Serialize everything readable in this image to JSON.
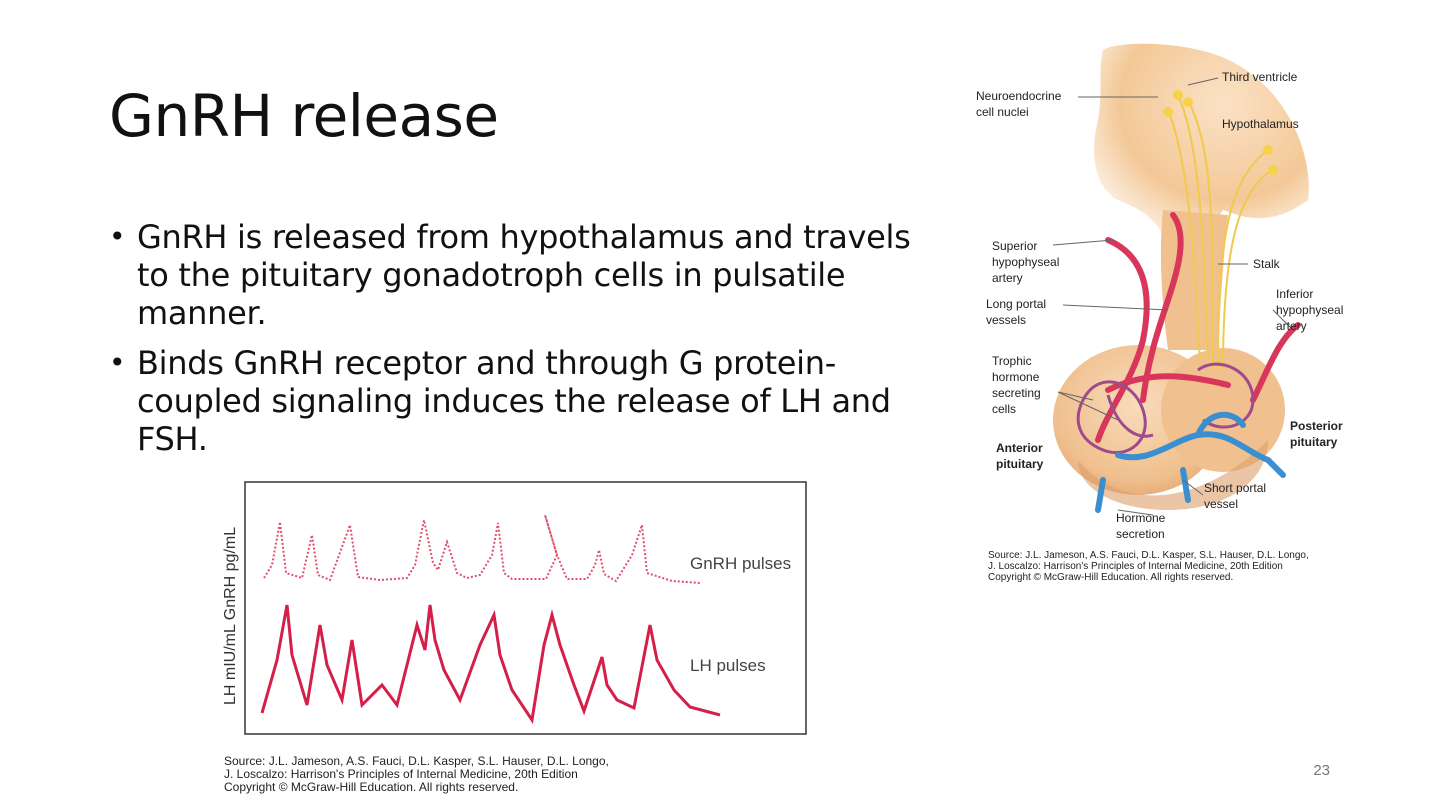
{
  "slide": {
    "title": "GnRH release",
    "bullets": [
      "GnRH is released from hypothalamus and travels to the pituitary gonadotroph cells in pulsatile manner.",
      "Binds GnRH receptor and through G protein-coupled signaling induces the release of LH and FSH."
    ],
    "page_number": "23"
  },
  "pulse_figure": {
    "y_label": "LH mIU/mL GnRH pg/mL",
    "gnrh_label": "GnRH pulses",
    "lh_label": "LH pulses",
    "source": [
      "Source: J.L. Jameson, A.S. Fauci, D.L. Kasper, S.L. Hauser, D.L. Longo,",
      "J. Loscalzo: Harrison's Principles of Internal Medicine, 20th Edition",
      "Copyright © McGraw-Hill Education. All rights reserved."
    ],
    "colors": {
      "gnrh": "#e0506c",
      "lh": "#d41f48",
      "frame": "#333333"
    }
  },
  "anatomy_figure": {
    "labels": {
      "third_ventricle": "Third ventricle",
      "neuroendocrine": "Neuroendocrine\ncell nuclei",
      "hypothalamus": "Hypothalamus",
      "superior_artery": "Superior\nhypophyseal\nartery",
      "stalk": "Stalk",
      "long_portal": "Long portal\nvessels",
      "inferior_artery": "Inferior\nhypophyseal\nartery",
      "trophic": "Trophic\nhormone\nsecreting\ncells",
      "posterior": "Posterior\npituitary",
      "anterior": "Anterior\npituitary",
      "short_portal": "Short portal\nvessel",
      "hormone_secretion": "Hormone\nsecretion"
    },
    "source": [
      "Source: J.L. Jameson, A.S. Fauci, D.L. Kasper, S.L. Hauser, D.L. Longo,",
      "J. Loscalzo: Harrison's Principles of Internal Medicine, 20th Edition",
      "Copyright © McGraw-Hill Education. All rights reserved."
    ],
    "colors": {
      "tissue": "#f2c79a",
      "tissue_dark": "#e0a56e",
      "artery": "#d8365a",
      "vein": "#3b8fd0",
      "nerve": "#f2c94c"
    }
  }
}
